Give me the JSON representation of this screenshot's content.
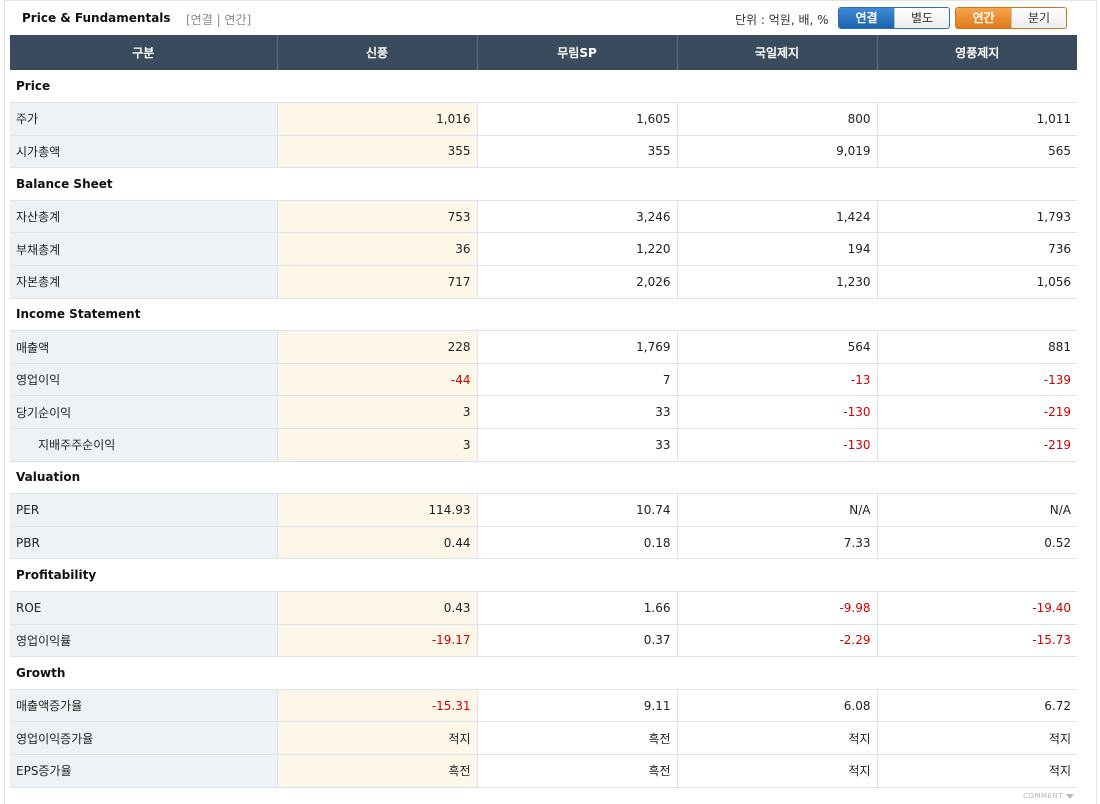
{
  "header": {
    "title": "Price & Fundamentals",
    "subtitle": "[연결 | 연간]",
    "unit": "단위 : 억원, 배, %",
    "toggle_consolidation": [
      "연결",
      "별도"
    ],
    "toggle_consolidation_active": "연결",
    "toggle_period": [
      "연간",
      "분기"
    ],
    "toggle_period_active": "연간"
  },
  "table": {
    "columns": [
      "구분",
      "신풍",
      "무림SP",
      "국일제지",
      "영풍제지"
    ],
    "sections": [
      {
        "name": "Price",
        "rows": [
          {
            "label": "주가",
            "values": [
              "1,016",
              "1,605",
              "800",
              "1,011"
            ]
          },
          {
            "label": "시가총액",
            "values": [
              "355",
              "355",
              "9,019",
              "565"
            ]
          }
        ]
      },
      {
        "name": "Balance Sheet",
        "rows": [
          {
            "label": "자산총계",
            "values": [
              "753",
              "3,246",
              "1,424",
              "1,793"
            ]
          },
          {
            "label": "부채총계",
            "values": [
              "36",
              "1,220",
              "194",
              "736"
            ]
          },
          {
            "label": "자본총계",
            "values": [
              "717",
              "2,026",
              "1,230",
              "1,056"
            ]
          }
        ]
      },
      {
        "name": "Income Statement",
        "rows": [
          {
            "label": "매출액",
            "values": [
              "228",
              "1,769",
              "564",
              "881"
            ]
          },
          {
            "label": "영업이익",
            "values": [
              "-44",
              "7",
              "-13",
              "-139"
            ]
          },
          {
            "label": "당기순이익",
            "values": [
              "3",
              "33",
              "-130",
              "-219"
            ]
          },
          {
            "label": "지배주주순이익",
            "values": [
              "3",
              "33",
              "-130",
              "-219"
            ],
            "indent": true
          }
        ]
      },
      {
        "name": "Valuation",
        "rows": [
          {
            "label": "PER",
            "values": [
              "114.93",
              "10.74",
              "N/A",
              "N/A"
            ]
          },
          {
            "label": "PBR",
            "values": [
              "0.44",
              "0.18",
              "7.33",
              "0.52"
            ]
          }
        ]
      },
      {
        "name": "Profitability",
        "rows": [
          {
            "label": "ROE",
            "values": [
              "0.43",
              "1.66",
              "-9.98",
              "-19.40"
            ]
          },
          {
            "label": "영업이익률",
            "values": [
              "-19.17",
              "0.37",
              "-2.29",
              "-15.73"
            ]
          }
        ]
      },
      {
        "name": "Growth",
        "rows": [
          {
            "label": "매출액증가율",
            "values": [
              "-15.31",
              "9.11",
              "6.08",
              "6.72"
            ]
          },
          {
            "label": "영업이익증가율",
            "values": [
              "적지",
              "흑전",
              "적지",
              "적지"
            ]
          },
          {
            "label": "EPS증가율",
            "values": [
              "흑전",
              "흑전",
              "적지",
              "적지"
            ]
          }
        ]
      }
    ]
  },
  "footer": {
    "comment_label": "COMMENT"
  },
  "colors": {
    "header_bg": "#3b4b5e",
    "label_bg": "#eef2f6",
    "highlight_col_bg": "#fdf7ea",
    "negative": "#d60000",
    "toggle_blue": "#2a6fb7",
    "toggle_orange": "#e07a18"
  }
}
